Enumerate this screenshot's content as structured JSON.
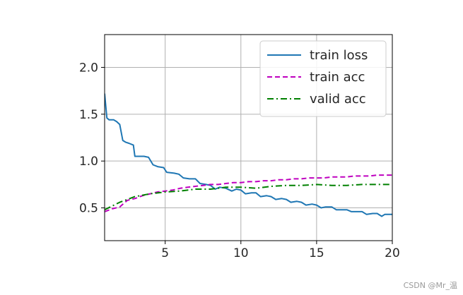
{
  "chart_data": {
    "type": "line",
    "title": "",
    "xlabel": "",
    "ylabel": "",
    "xlim": [
      1,
      20
    ],
    "ylim": [
      0.15,
      2.35
    ],
    "xticks": [
      5,
      10,
      15,
      20
    ],
    "yticks": [
      0.5,
      1.0,
      1.5,
      2.0
    ],
    "xtick_labels": [
      "5",
      "10",
      "15",
      "20"
    ],
    "ytick_labels": [
      "0.5",
      "1.0",
      "1.5",
      "2.0"
    ],
    "grid": true,
    "legend_position": "top-right",
    "series": [
      {
        "name": "train loss",
        "color": "#1f77b4",
        "dash": "solid",
        "points": [
          [
            1.0,
            1.72
          ],
          [
            1.15,
            1.46
          ],
          [
            1.3,
            1.44
          ],
          [
            1.6,
            1.44
          ],
          [
            1.8,
            1.42
          ],
          [
            2.0,
            1.39
          ],
          [
            2.2,
            1.22
          ],
          [
            2.4,
            1.2
          ],
          [
            2.6,
            1.19
          ],
          [
            2.9,
            1.17
          ],
          [
            3.0,
            1.05
          ],
          [
            3.3,
            1.05
          ],
          [
            3.6,
            1.05
          ],
          [
            3.9,
            1.04
          ],
          [
            4.2,
            0.96
          ],
          [
            4.5,
            0.94
          ],
          [
            4.9,
            0.93
          ],
          [
            5.1,
            0.88
          ],
          [
            5.6,
            0.87
          ],
          [
            5.9,
            0.86
          ],
          [
            6.2,
            0.82
          ],
          [
            6.6,
            0.81
          ],
          [
            7.0,
            0.81
          ],
          [
            7.3,
            0.76
          ],
          [
            7.7,
            0.75
          ],
          [
            8.0,
            0.74
          ],
          [
            8.3,
            0.7
          ],
          [
            8.6,
            0.72
          ],
          [
            9.0,
            0.71
          ],
          [
            9.4,
            0.68
          ],
          [
            9.7,
            0.7
          ],
          [
            10.0,
            0.69
          ],
          [
            10.3,
            0.65
          ],
          [
            10.7,
            0.66
          ],
          [
            11.0,
            0.66
          ],
          [
            11.3,
            0.62
          ],
          [
            11.7,
            0.63
          ],
          [
            12.0,
            0.62
          ],
          [
            12.3,
            0.59
          ],
          [
            12.7,
            0.6
          ],
          [
            13.0,
            0.59
          ],
          [
            13.3,
            0.56
          ],
          [
            13.7,
            0.57
          ],
          [
            14.0,
            0.56
          ],
          [
            14.3,
            0.53
          ],
          [
            14.7,
            0.54
          ],
          [
            15.0,
            0.53
          ],
          [
            15.3,
            0.5
          ],
          [
            15.6,
            0.51
          ],
          [
            16.0,
            0.51
          ],
          [
            16.3,
            0.48
          ],
          [
            16.7,
            0.48
          ],
          [
            17.0,
            0.48
          ],
          [
            17.3,
            0.46
          ],
          [
            17.7,
            0.46
          ],
          [
            18.0,
            0.46
          ],
          [
            18.3,
            0.43
          ],
          [
            18.7,
            0.44
          ],
          [
            19.0,
            0.44
          ],
          [
            19.3,
            0.41
          ],
          [
            19.5,
            0.43
          ],
          [
            20.0,
            0.43
          ]
        ]
      },
      {
        "name": "train acc",
        "color": "#bf00bf",
        "dash": "dashed",
        "points": [
          [
            1.0,
            0.46
          ],
          [
            1.5,
            0.49
          ],
          [
            2.0,
            0.51
          ],
          [
            2.5,
            0.58
          ],
          [
            3.0,
            0.6
          ],
          [
            3.5,
            0.63
          ],
          [
            4.0,
            0.65
          ],
          [
            4.5,
            0.67
          ],
          [
            5.0,
            0.68
          ],
          [
            5.5,
            0.69
          ],
          [
            6.0,
            0.71
          ],
          [
            6.5,
            0.72
          ],
          [
            7.0,
            0.73
          ],
          [
            7.5,
            0.74
          ],
          [
            8.0,
            0.75
          ],
          [
            8.5,
            0.75
          ],
          [
            9.0,
            0.76
          ],
          [
            9.5,
            0.77
          ],
          [
            10.0,
            0.77
          ],
          [
            10.5,
            0.78
          ],
          [
            11.0,
            0.78
          ],
          [
            11.5,
            0.79
          ],
          [
            12.0,
            0.79
          ],
          [
            12.5,
            0.8
          ],
          [
            13.0,
            0.8
          ],
          [
            13.5,
            0.81
          ],
          [
            14.0,
            0.81
          ],
          [
            14.5,
            0.82
          ],
          [
            15.0,
            0.82
          ],
          [
            15.5,
            0.82
          ],
          [
            16.0,
            0.83
          ],
          [
            16.5,
            0.83
          ],
          [
            17.0,
            0.83
          ],
          [
            17.5,
            0.84
          ],
          [
            18.0,
            0.84
          ],
          [
            18.5,
            0.84
          ],
          [
            19.0,
            0.85
          ],
          [
            19.5,
            0.85
          ],
          [
            20.0,
            0.85
          ]
        ]
      },
      {
        "name": "valid acc",
        "color": "#008000",
        "dash": "dashdot",
        "points": [
          [
            1.0,
            0.48
          ],
          [
            2.0,
            0.56
          ],
          [
            3.0,
            0.62
          ],
          [
            4.0,
            0.65
          ],
          [
            5.0,
            0.67
          ],
          [
            6.0,
            0.68
          ],
          [
            7.0,
            0.7
          ],
          [
            8.0,
            0.7
          ],
          [
            9.0,
            0.72
          ],
          [
            10.0,
            0.72
          ],
          [
            11.0,
            0.71
          ],
          [
            12.0,
            0.73
          ],
          [
            13.0,
            0.74
          ],
          [
            14.0,
            0.74
          ],
          [
            15.0,
            0.75
          ],
          [
            16.0,
            0.74
          ],
          [
            17.0,
            0.74
          ],
          [
            18.0,
            0.75
          ],
          [
            19.0,
            0.75
          ],
          [
            20.0,
            0.75
          ]
        ]
      }
    ]
  },
  "watermark": "CSDN @Mr_温"
}
